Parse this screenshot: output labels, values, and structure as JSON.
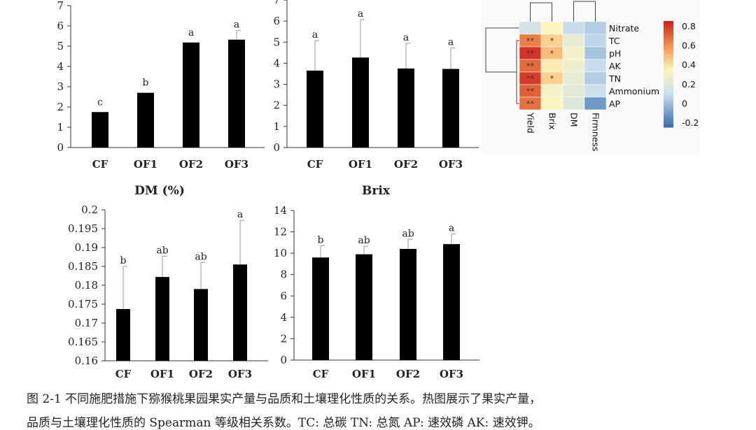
{
  "chart_data": [
    {
      "type": "bar",
      "title": "DM (%)",
      "categories": [
        "CF",
        "OF1",
        "OF2",
        "OF3"
      ],
      "values": [
        1.75,
        2.7,
        5.18,
        5.32
      ],
      "errors": [
        0,
        0,
        0,
        0.45
      ],
      "labels": [
        "c",
        "b",
        "a",
        "a"
      ],
      "ylim": [
        0,
        7
      ],
      "yticks": [
        "0",
        "1",
        "2",
        "3",
        "4",
        "5",
        "6",
        "7"
      ]
    },
    {
      "type": "bar",
      "title": "Brix",
      "categories": [
        "CF",
        "OF1",
        "OF2",
        "OF3"
      ],
      "values": [
        3.65,
        4.27,
        3.75,
        3.73
      ],
      "errors": [
        1.42,
        1.8,
        1.2,
        1.0
      ],
      "labels": [
        "a",
        "a",
        "a",
        "a"
      ],
      "ylim": [
        0,
        7
      ],
      "yticks": [
        "0",
        "1",
        "2",
        "3",
        "4",
        "5",
        "6",
        "7"
      ]
    },
    {
      "type": "bar",
      "title": "",
      "categories": [
        "CF",
        "OF1",
        "OF2",
        "OF3"
      ],
      "values": [
        0.1737,
        0.1822,
        0.179,
        0.1855
      ],
      "errors": [
        0.0113,
        0.0055,
        0.007,
        0.0117
      ],
      "labels": [
        "b",
        "ab",
        "ab",
        "a"
      ],
      "ylim": [
        0.16,
        0.2
      ],
      "yticks": [
        "0.16",
        "0.165",
        "0.17",
        "0.175",
        "0.18",
        "0.185",
        "0.19",
        "0.195",
        "0.2"
      ]
    },
    {
      "type": "bar",
      "title": "",
      "categories": [
        "CF",
        "OF1",
        "OF2",
        "OF3"
      ],
      "values": [
        9.6,
        9.9,
        10.4,
        10.85
      ],
      "errors": [
        1.1,
        0.75,
        0.9,
        0.95
      ],
      "labels": [
        "b",
        "ab",
        "ab",
        "a"
      ],
      "ylim": [
        0,
        14
      ],
      "yticks": [
        "0",
        "2",
        "4",
        "6",
        "8",
        "10",
        "12",
        "14"
      ]
    },
    {
      "type": "heatmap",
      "rows": [
        "Nitrate",
        "TC",
        "pH",
        "AK",
        "TN",
        "Ammonium",
        "AP"
      ],
      "cols": [
        "Yield",
        "Brix",
        "DM",
        "Firmness"
      ],
      "values": [
        [
          0.15,
          0.35,
          0.1,
          0.05
        ],
        [
          0.65,
          0.45,
          0.25,
          0.08
        ],
        [
          0.82,
          0.5,
          0.3,
          0.02
        ],
        [
          0.7,
          0.38,
          0.28,
          0.1
        ],
        [
          0.8,
          0.45,
          0.25,
          0.05
        ],
        [
          0.72,
          0.32,
          0.22,
          0.12
        ],
        [
          0.68,
          0.35,
          0.2,
          -0.1
        ]
      ],
      "stars": [
        [
          "",
          "",
          "",
          ""
        ],
        [
          "**",
          "*",
          "",
          ""
        ],
        [
          "**",
          "*",
          "",
          ""
        ],
        [
          "**",
          "",
          "",
          ""
        ],
        [
          "**",
          "*",
          "",
          ""
        ],
        [
          "**",
          "",
          "",
          ""
        ],
        [
          "**",
          "",
          "",
          ""
        ]
      ],
      "colorbar_ticks": [
        "0.8",
        "0.6",
        "0.4",
        "0.2",
        "0",
        "-0.2"
      ],
      "range": [
        -0.25,
        0.85
      ]
    }
  ],
  "caption": {
    "line1": "图 2-1  不同施肥措施下猕猴桃果园果实产量与品质和土壤理化性质的关系。热图展示了果实产量，",
    "line2": "品质与土壤理化性质的 Spearman 等级相关系数。TC: 总碳  TN: 总氮  AP: 速效磷  AK: 速效钾。"
  }
}
